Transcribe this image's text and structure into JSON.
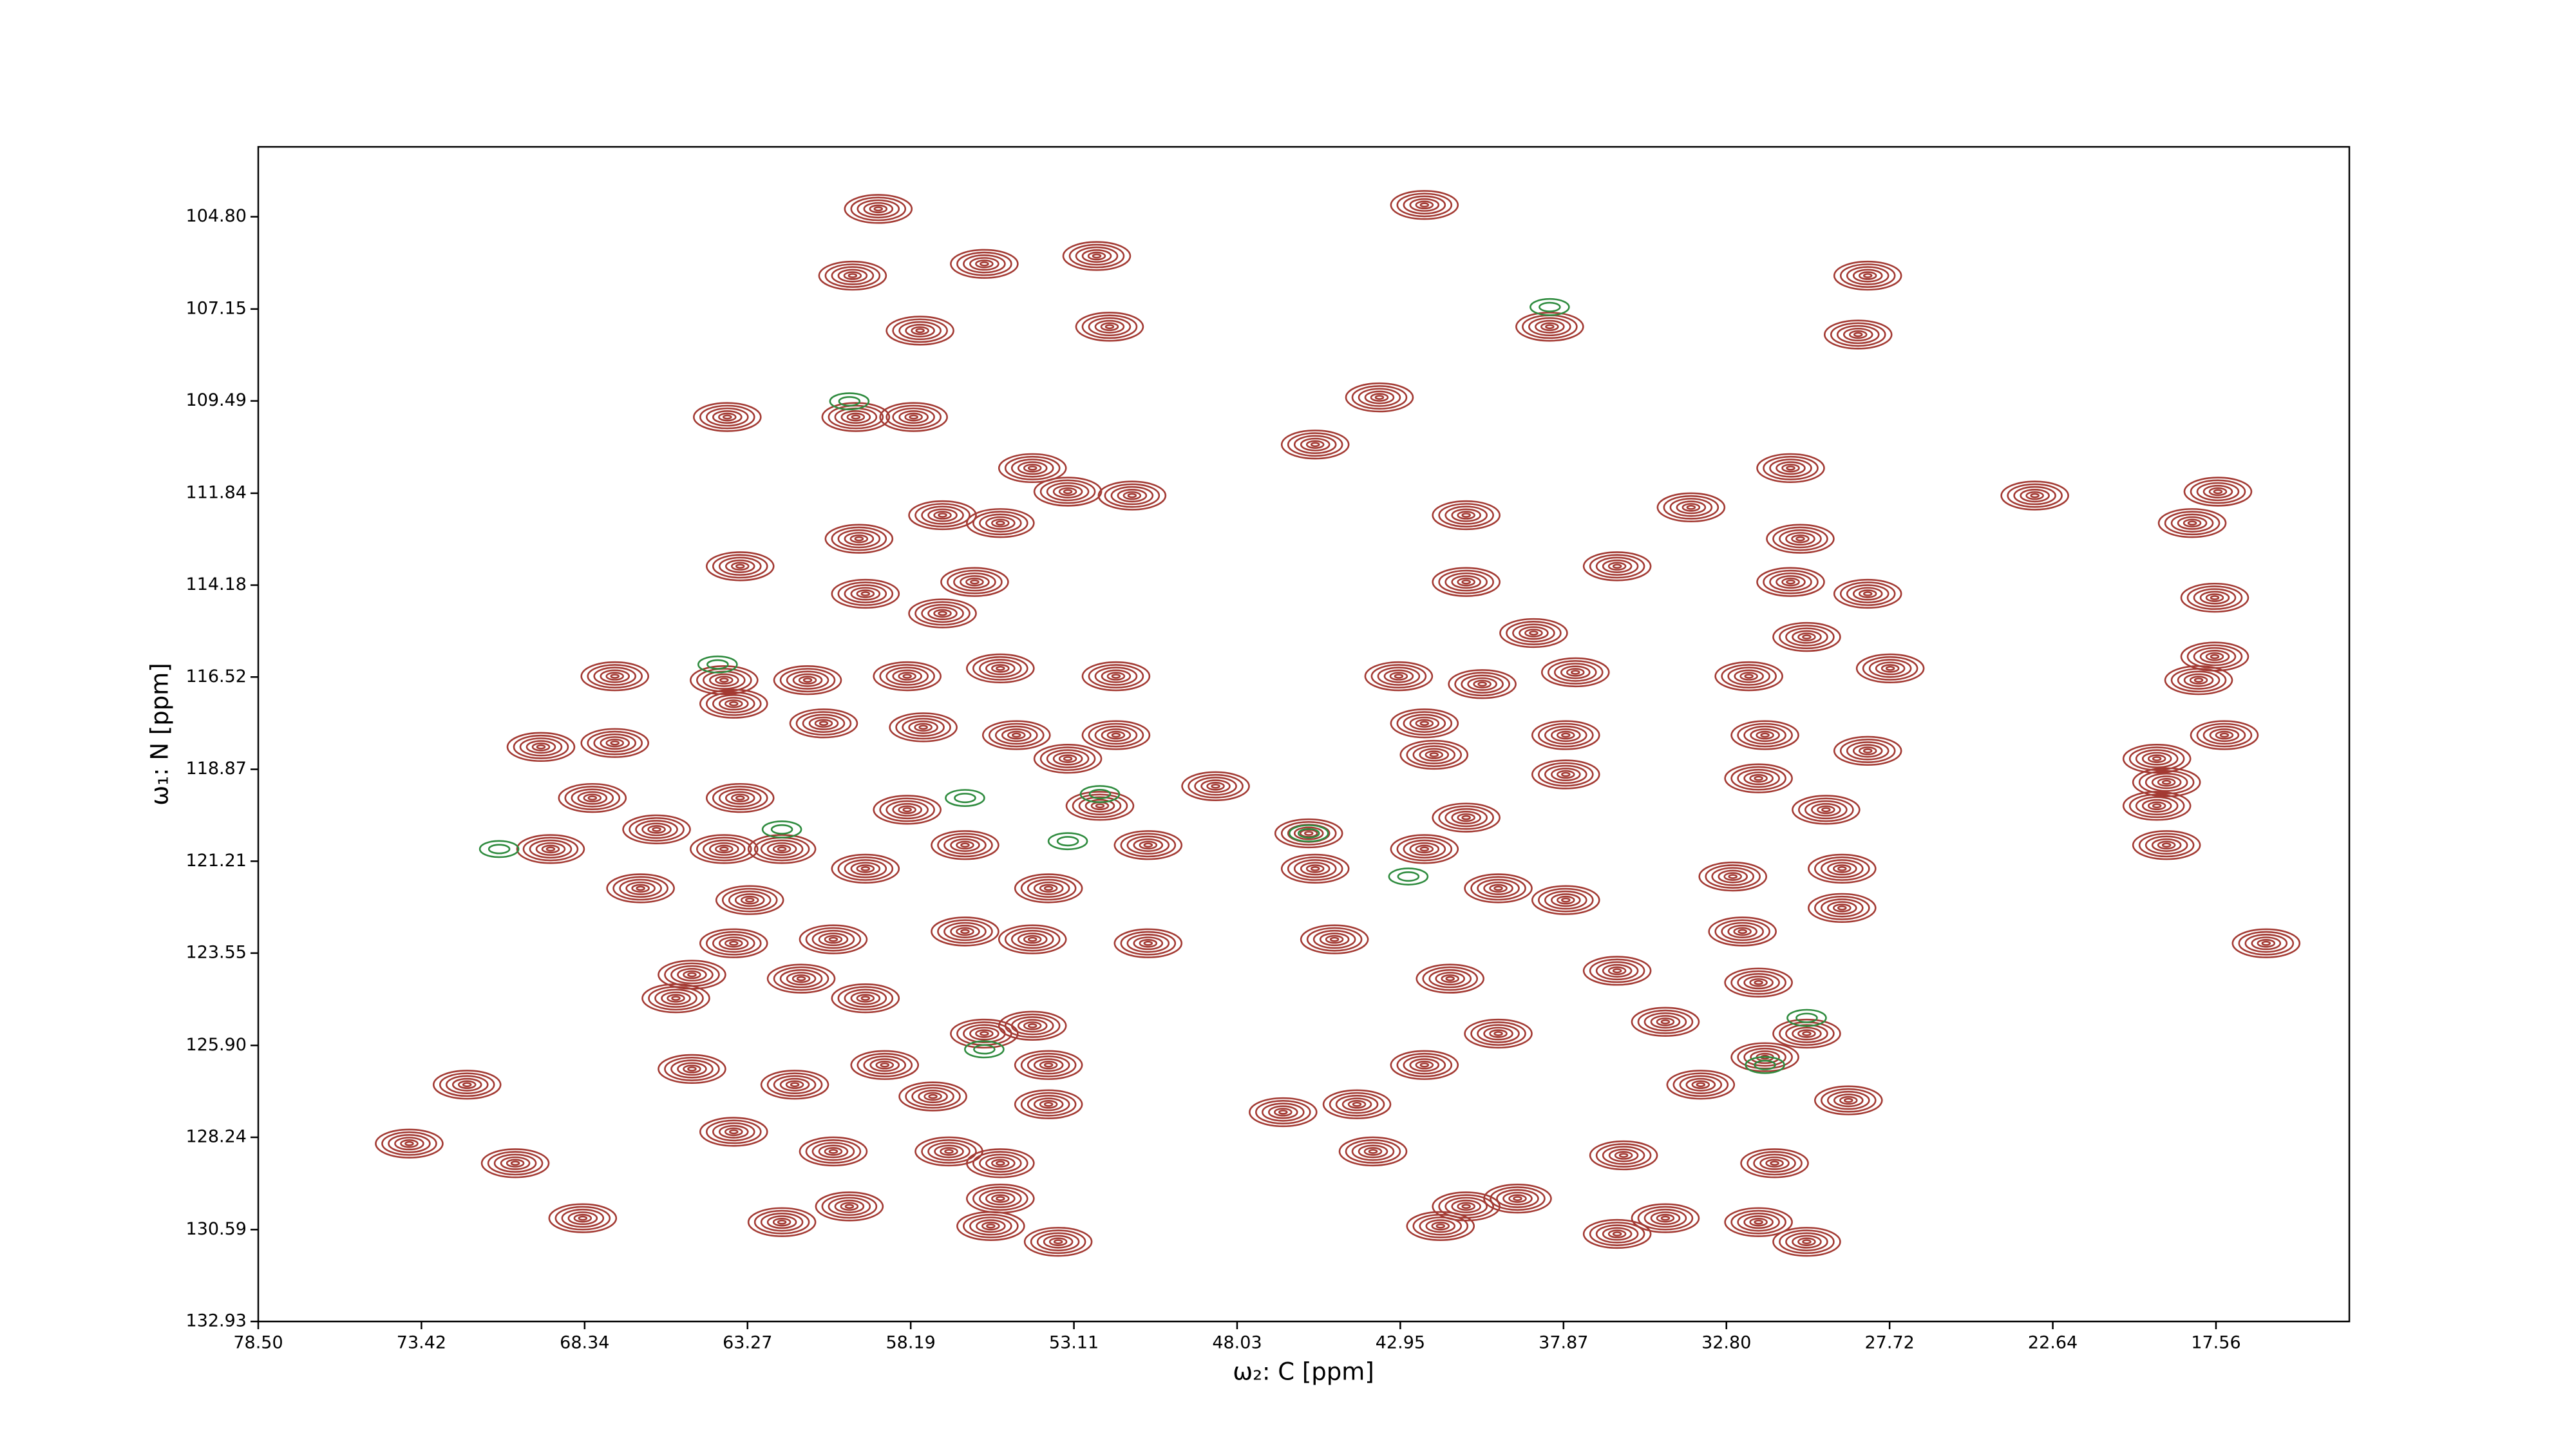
{
  "chart_data": {
    "type": "contour",
    "x_label": "ω₂: C [ppm]",
    "y_label": "ω₁: N [ppm]",
    "xlim": [
      78.5,
      13.41
    ],
    "ylim": [
      132.93,
      103.02
    ],
    "xticks": [
      {
        "value": 78.5,
        "label": "78.50"
      },
      73.42,
      68.34,
      63.27,
      58.19,
      53.11,
      48.03,
      42.95,
      37.87,
      {
        "value": 32.8,
        "label": "32.80"
      },
      27.72,
      22.64,
      17.56
    ],
    "yticks": [
      {
        "value": 104.8,
        "label": "104.80"
      },
      107.15,
      109.49,
      111.84,
      114.18,
      116.52,
      118.87,
      121.21,
      123.55,
      {
        "value": 125.9,
        "label": "125.90"
      },
      128.24,
      130.59,
      132.93
    ],
    "series": [
      {
        "color": "#a33a33",
        "x": [
          59.2,
          42.2,
          60.0,
          55.9,
          52.4,
          28.4,
          57.9,
          52.0,
          38.3,
          28.7,
          63.9,
          59.9,
          58.1,
          43.6,
          45.6,
          30.8,
          54.4,
          53.3,
          51.3,
          57.2,
          55.4,
          33.9,
          23.2,
          17.5,
          18.3,
          40.9,
          59.8,
          30.5,
          63.5,
          36.2,
          59.6,
          56.2,
          40.9,
          30.8,
          28.4,
          17.6,
          57.2,
          38.8,
          30.3,
          58.3,
          55.4,
          51.8,
          43.0,
          40.4,
          37.5,
          32.1,
          27.7,
          17.6,
          64.0,
          61.4,
          67.4,
          18.1,
          63.7,
          60.9,
          57.8,
          54.9,
          51.8,
          42.2,
          37.8,
          31.6,
          17.3,
          69.7,
          67.4,
          19.4,
          41.9,
          28.4,
          53.3,
          48.7,
          37.8,
          31.8,
          19.1,
          68.1,
          63.5,
          58.3,
          52.3,
          29.7,
          19.4,
          40.9,
          66.1,
          45.8,
          69.4,
          64.0,
          62.2,
          56.5,
          50.8,
          42.2,
          29.2,
          19.1,
          45.6,
          32.6,
          53.9,
          66.6,
          63.2,
          59.6,
          39.9,
          37.8,
          29.2,
          32.3,
          60.6,
          56.5,
          54.4,
          50.8,
          45.0,
          16.0,
          63.7,
          65.0,
          61.6,
          41.4,
          36.2,
          31.8,
          65.5,
          59.6,
          55.9,
          54.4,
          30.3,
          34.7,
          39.9,
          65.0,
          59.0,
          53.9,
          42.2,
          31.6,
          72.0,
          61.8,
          57.5,
          53.9,
          46.6,
          44.3,
          29.0,
          33.6,
          63.7,
          73.8,
          60.6,
          57.0,
          55.4,
          43.8,
          36.0,
          31.3,
          70.5,
          60.1,
          55.4,
          40.9,
          39.3,
          68.4,
          62.2,
          55.7,
          53.6,
          41.7,
          36.2,
          34.7,
          31.8,
          30.3
        ],
        "y": [
          104.6,
          104.5,
          106.3,
          106.0,
          105.8,
          106.3,
          107.7,
          107.6,
          107.6,
          107.8,
          109.9,
          109.9,
          109.9,
          109.4,
          110.6,
          111.2,
          111.2,
          111.8,
          111.9,
          112.4,
          112.6,
          112.2,
          111.9,
          111.8,
          112.6,
          112.4,
          113.0,
          113.0,
          113.7,
          113.7,
          114.4,
          114.1,
          114.1,
          114.1,
          114.4,
          114.5,
          114.9,
          115.4,
          115.5,
          116.5,
          116.3,
          116.5,
          116.5,
          116.7,
          116.4,
          116.5,
          116.3,
          116.0,
          116.6,
          116.6,
          116.5,
          116.6,
          117.2,
          117.7,
          117.8,
          118.0,
          118.0,
          117.7,
          118.0,
          118.0,
          118.0,
          118.3,
          118.2,
          118.6,
          118.5,
          118.4,
          118.6,
          119.3,
          119.0,
          119.1,
          119.2,
          119.6,
          119.6,
          119.9,
          119.8,
          119.9,
          119.8,
          120.1,
          120.4,
          120.5,
          120.9,
          120.9,
          120.9,
          120.8,
          120.8,
          120.9,
          121.4,
          120.8,
          121.4,
          121.6,
          121.9,
          121.9,
          122.2,
          121.4,
          121.9,
          122.2,
          122.4,
          123.0,
          123.2,
          123.0,
          123.2,
          123.3,
          123.2,
          123.3,
          123.3,
          124.1,
          124.2,
          124.2,
          124.0,
          124.3,
          124.7,
          124.7,
          125.6,
          125.4,
          125.6,
          125.3,
          125.6,
          126.5,
          126.4,
          126.4,
          126.4,
          126.2,
          126.9,
          126.9,
          127.2,
          127.4,
          127.6,
          127.4,
          127.3,
          126.9,
          128.1,
          128.4,
          128.6,
          128.6,
          128.9,
          128.6,
          128.7,
          128.9,
          128.9,
          130.0,
          129.8,
          130.0,
          129.8,
          130.3,
          130.4,
          130.5,
          130.9,
          130.5,
          130.7,
          130.3,
          130.4,
          130.9
        ]
      },
      {
        "color": "#2e8b3e",
        "x": [
          64.2,
          71.0,
          62.2,
          60.1,
          45.8,
          42.7,
          30.3,
          38.3,
          56.5,
          53.3,
          52.3,
          31.6,
          55.9
        ],
        "y": [
          116.2,
          120.9,
          120.4,
          109.5,
          120.5,
          121.6,
          125.2,
          107.1,
          119.6,
          120.7,
          119.5,
          126.4,
          126.0
        ]
      }
    ]
  }
}
